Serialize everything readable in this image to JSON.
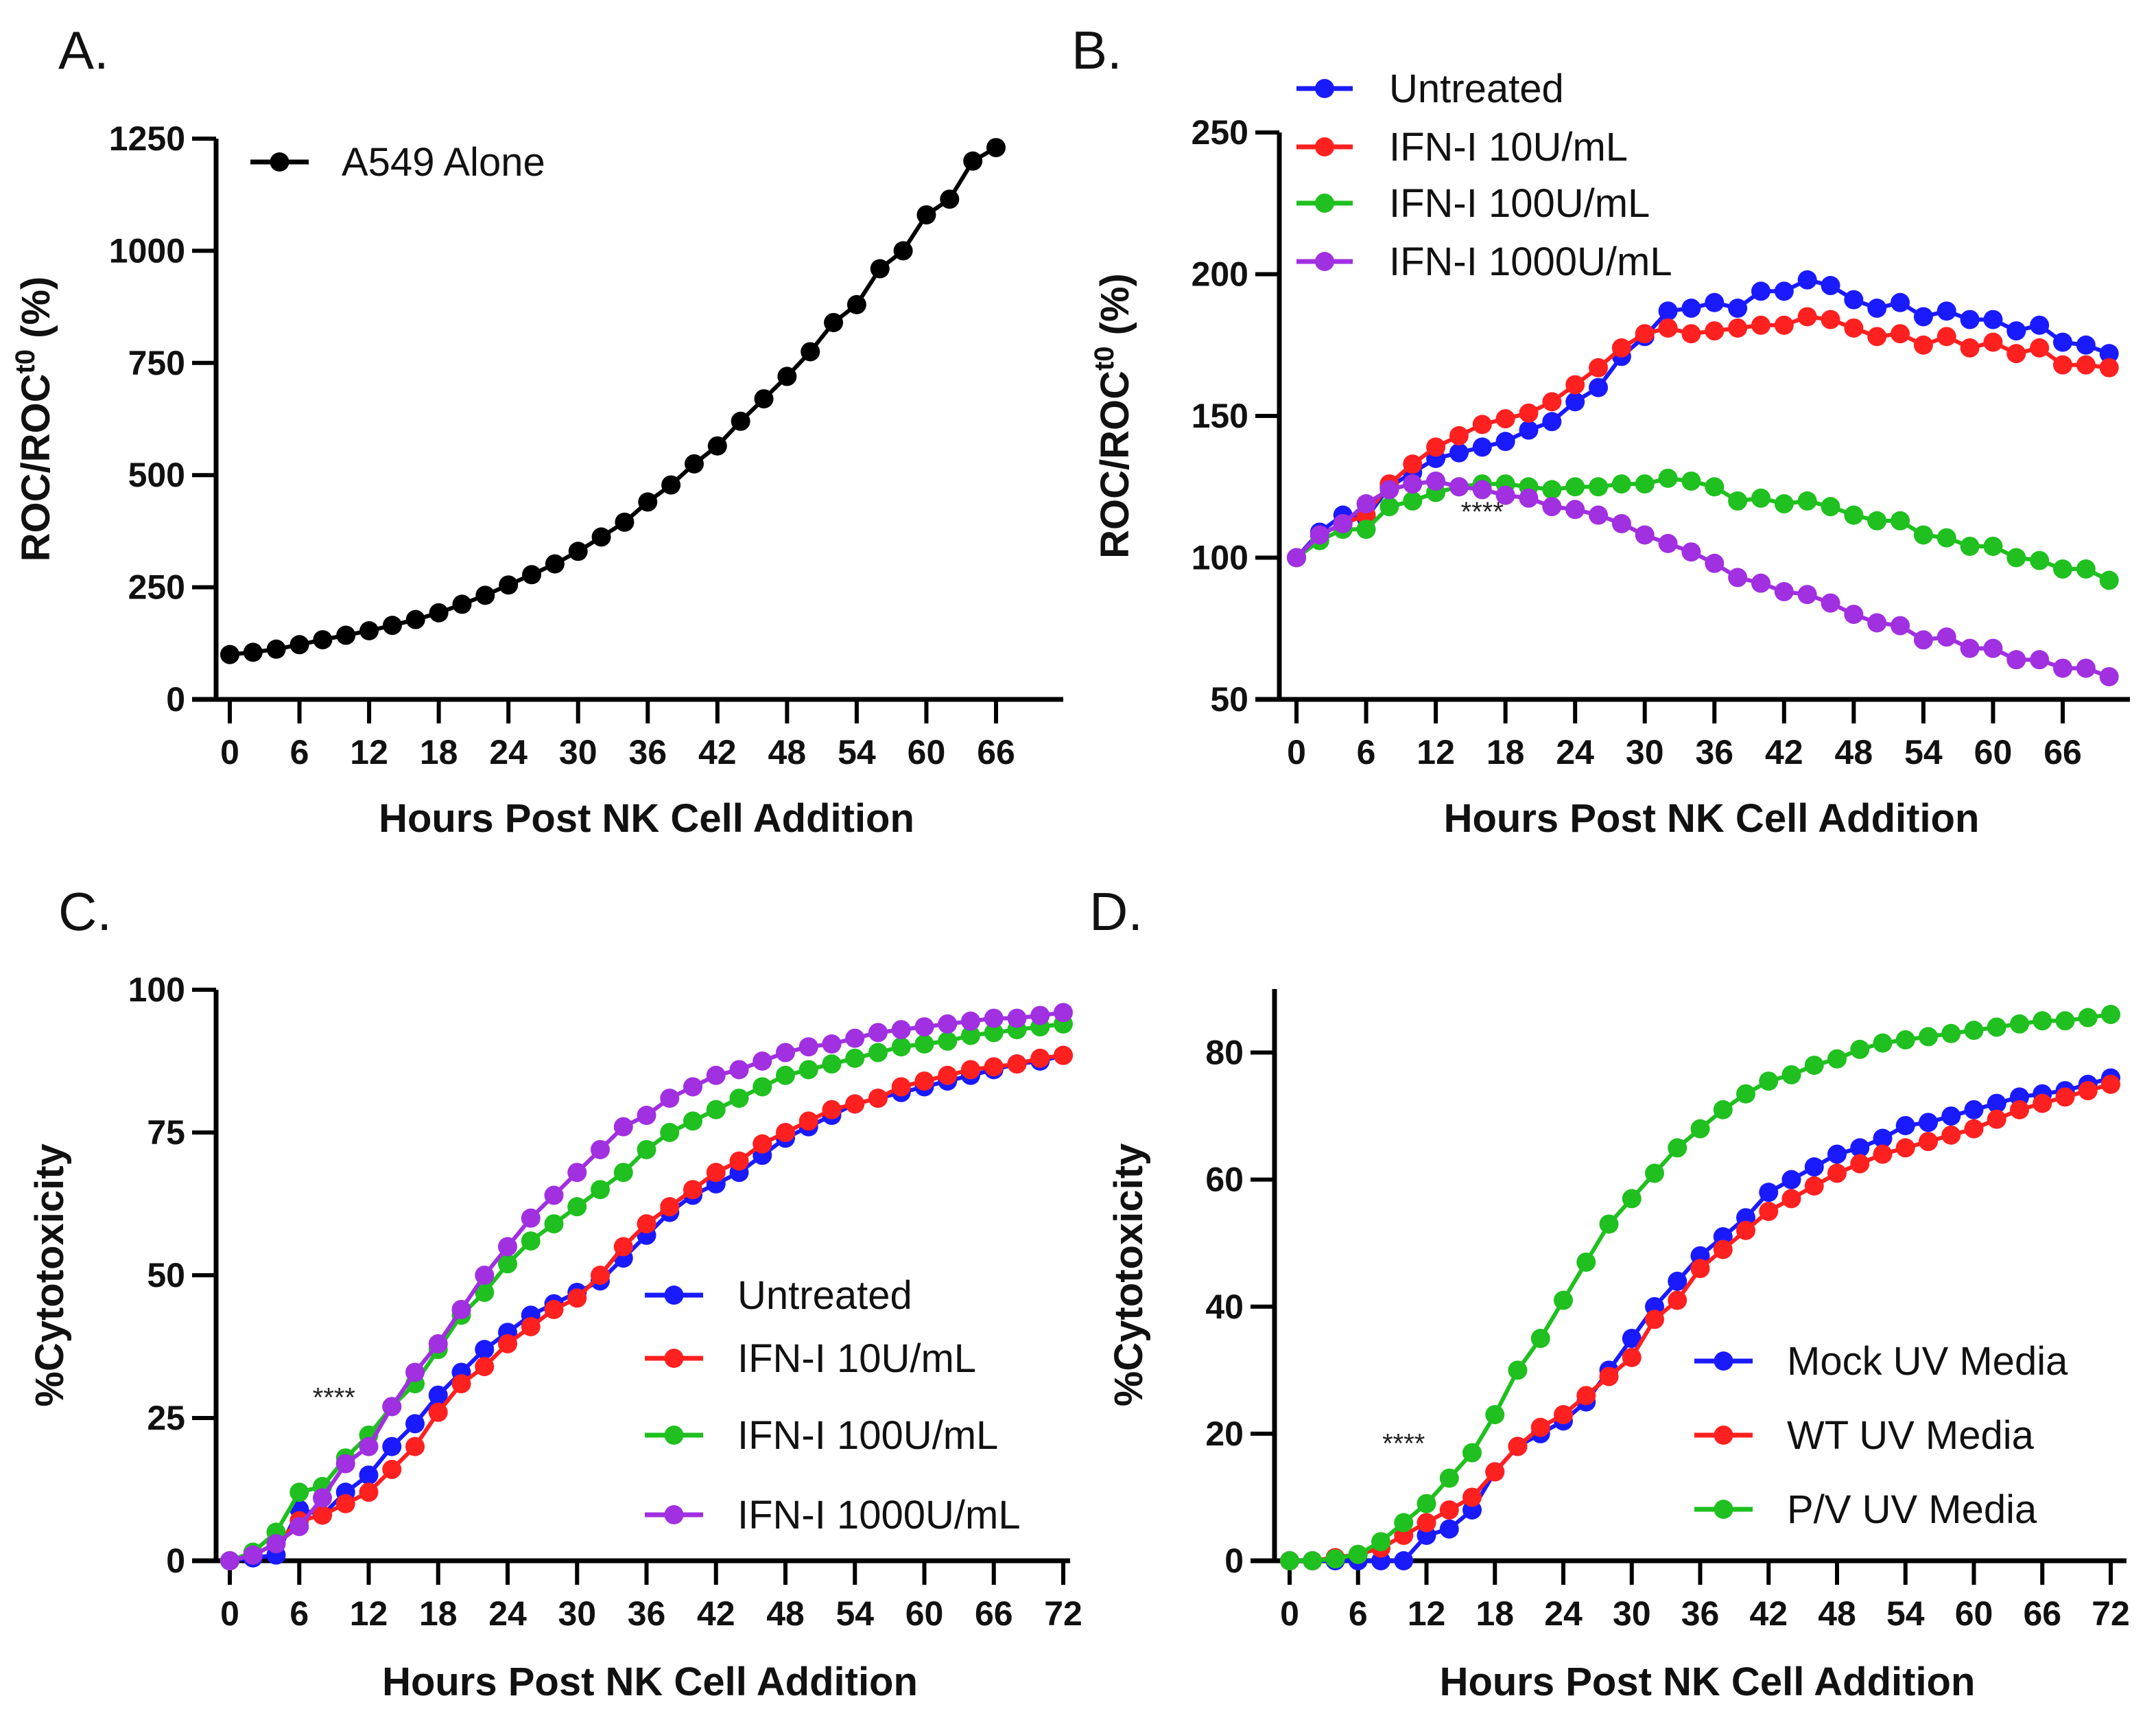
{
  "chart_data": [
    {
      "type": "line",
      "panel_label": "A.",
      "xlabel": "Hours Post NK Cell Addition",
      "ylabel": "ROC/ROC",
      "ylabel_sup": "t0",
      "ylabel_suffix": " (%)",
      "xticks": [
        0,
        6,
        12,
        18,
        24,
        30,
        36,
        42,
        48,
        54,
        60,
        66
      ],
      "yticks": [
        0,
        250,
        500,
        750,
        1000,
        1250
      ],
      "xlim": [
        -2,
        73
      ],
      "ylim": [
        0,
        1250
      ],
      "legend_position": "top-left",
      "series": [
        {
          "name": "A549 Alone",
          "color": "#000000",
          "x": [
            0,
            2,
            4,
            6,
            8,
            10,
            12,
            14,
            16,
            18,
            20,
            22,
            24,
            26,
            28,
            30,
            32,
            34,
            36,
            38,
            40,
            42,
            44,
            46,
            48,
            50,
            52,
            54,
            56,
            58,
            60,
            62,
            64,
            66
          ],
          "y": [
            100,
            105,
            112,
            122,
            133,
            143,
            153,
            165,
            178,
            193,
            212,
            232,
            255,
            278,
            302,
            330,
            362,
            395,
            440,
            478,
            525,
            565,
            620,
            670,
            720,
            775,
            840,
            880,
            960,
            1000,
            1080,
            1115,
            1200,
            1230
          ]
        }
      ],
      "annotations": []
    },
    {
      "type": "line",
      "panel_label": "B.",
      "xlabel": "Hours Post NK Cell Addition",
      "ylabel": "ROC/ROC",
      "ylabel_sup": "t0",
      "ylabel_suffix": " (%)",
      "xticks": [
        0,
        6,
        12,
        18,
        24,
        30,
        36,
        42,
        48,
        54,
        60,
        66
      ],
      "yticks": [
        50,
        100,
        150,
        200,
        250
      ],
      "xlim": [
        -2,
        72
      ],
      "ylim": [
        50,
        250
      ],
      "legend_position": "top-left",
      "series": [
        {
          "name": "Untreated",
          "color": "#1a1aff",
          "x": [
            0,
            2,
            4,
            6,
            8,
            10,
            12,
            14,
            16,
            18,
            20,
            22,
            24,
            26,
            28,
            30,
            32,
            34,
            36,
            38,
            40,
            42,
            44,
            46,
            48,
            50,
            52,
            54,
            56,
            58,
            60,
            62,
            64,
            66,
            68,
            70
          ],
          "y": [
            100,
            109,
            115,
            114,
            125,
            130,
            135,
            137,
            139,
            141,
            145,
            148,
            155,
            160,
            171,
            178,
            187,
            188,
            190,
            188,
            194,
            194,
            198,
            196,
            191,
            188,
            190,
            185,
            187,
            184,
            184,
            180,
            182,
            176,
            175,
            172
          ]
        },
        {
          "name": "IFN-I 10U/mL",
          "color": "#ff2020",
          "x": [
            0,
            2,
            4,
            6,
            8,
            10,
            12,
            14,
            16,
            18,
            20,
            22,
            24,
            26,
            28,
            30,
            32,
            34,
            36,
            38,
            40,
            42,
            44,
            46,
            48,
            50,
            52,
            54,
            56,
            58,
            60,
            62,
            64,
            66,
            68,
            70
          ],
          "y": [
            100,
            108,
            112,
            115,
            126,
            133,
            139,
            143,
            147,
            149,
            151,
            155,
            161,
            167,
            174,
            179,
            181,
            179,
            180,
            181,
            182,
            182,
            185,
            184,
            181,
            178,
            179,
            175,
            178,
            174,
            176,
            172,
            174,
            168,
            168,
            167
          ]
        },
        {
          "name": "IFN-I 100U/mL",
          "color": "#1fc01f",
          "x": [
            0,
            2,
            4,
            6,
            8,
            10,
            12,
            14,
            16,
            18,
            20,
            22,
            24,
            26,
            28,
            30,
            32,
            34,
            36,
            38,
            40,
            42,
            44,
            46,
            48,
            50,
            52,
            54,
            56,
            58,
            60,
            62,
            64,
            66,
            68,
            70
          ],
          "y": [
            100,
            106,
            110,
            110,
            118,
            120,
            123,
            125,
            126,
            126,
            125,
            124,
            125,
            125,
            126,
            126,
            128,
            127,
            125,
            120,
            121,
            119,
            120,
            118,
            115,
            113,
            113,
            108,
            107,
            104,
            104,
            100,
            99,
            96,
            96,
            92
          ]
        },
        {
          "name": "IFN-I 1000U/mL",
          "color": "#a030e0",
          "x": [
            0,
            2,
            4,
            6,
            8,
            10,
            12,
            14,
            16,
            18,
            20,
            22,
            24,
            26,
            28,
            30,
            32,
            34,
            36,
            38,
            40,
            42,
            44,
            46,
            48,
            50,
            52,
            54,
            56,
            58,
            60,
            62,
            64,
            66,
            68,
            70
          ],
          "y": [
            100,
            108,
            112,
            119,
            124,
            126,
            127,
            125,
            124,
            122,
            121,
            118,
            117,
            115,
            112,
            108,
            105,
            102,
            98,
            93,
            91,
            88,
            87,
            84,
            80,
            77,
            76,
            71,
            72,
            68,
            68,
            64,
            64,
            61,
            61,
            58
          ]
        }
      ],
      "annotations": [
        {
          "text": "****",
          "x": 16,
          "y": 113
        }
      ]
    },
    {
      "type": "line",
      "panel_label": "C.",
      "xlabel": "Hours Post NK Cell Addition",
      "ylabel": "%Cytotoxicity",
      "ylabel_sup": "",
      "ylabel_suffix": "",
      "xticks": [
        0,
        6,
        12,
        18,
        24,
        30,
        36,
        42,
        48,
        54,
        60,
        66,
        72
      ],
      "yticks": [
        0,
        25,
        50,
        75,
        100
      ],
      "xlim": [
        -2,
        73
      ],
      "ylim": [
        0,
        100
      ],
      "legend_position": "bottom-right",
      "series": [
        {
          "name": "Untreated",
          "color": "#1a1aff",
          "x": [
            0,
            2,
            4,
            6,
            8,
            10,
            12,
            14,
            16,
            18,
            20,
            22,
            24,
            26,
            28,
            30,
            32,
            34,
            36,
            38,
            40,
            42,
            44,
            46,
            48,
            50,
            52,
            54,
            56,
            58,
            60,
            62,
            64,
            66,
            68,
            70,
            72
          ],
          "y": [
            0,
            0.5,
            1,
            9,
            8,
            12,
            15,
            20,
            24,
            29,
            33,
            37,
            40,
            43,
            45,
            47,
            49,
            53,
            57,
            61,
            64,
            66,
            68,
            71,
            74,
            76,
            78,
            80,
            81,
            82,
            83,
            84,
            85,
            86,
            87,
            87.5,
            88.5
          ]
        },
        {
          "name": "IFN-I 10U/mL",
          "color": "#ff2020",
          "x": [
            0,
            2,
            4,
            6,
            8,
            10,
            12,
            14,
            16,
            18,
            20,
            22,
            24,
            26,
            28,
            30,
            32,
            34,
            36,
            38,
            40,
            42,
            44,
            46,
            48,
            50,
            52,
            54,
            56,
            58,
            60,
            62,
            64,
            66,
            68,
            70,
            72
          ],
          "y": [
            0,
            1,
            3,
            7,
            8,
            10,
            12,
            16,
            20,
            26,
            31,
            34,
            38,
            41,
            44,
            46,
            50,
            55,
            59,
            62,
            65,
            68,
            70,
            73,
            75,
            77,
            79,
            80,
            81,
            83,
            84,
            85,
            86,
            86.5,
            87,
            88,
            88.5
          ]
        },
        {
          "name": "IFN-I 100U/mL",
          "color": "#1fc01f",
          "x": [
            0,
            2,
            4,
            6,
            8,
            10,
            12,
            14,
            16,
            18,
            20,
            22,
            24,
            26,
            28,
            30,
            32,
            34,
            36,
            38,
            40,
            42,
            44,
            46,
            48,
            50,
            52,
            54,
            56,
            58,
            60,
            62,
            64,
            66,
            68,
            70,
            72
          ],
          "y": [
            0,
            1.5,
            5,
            12,
            13,
            18,
            22,
            27,
            31,
            37,
            43,
            47,
            52,
            56,
            59,
            62,
            65,
            68,
            72,
            75,
            77,
            79,
            81,
            83,
            85,
            86,
            87,
            88,
            89,
            90,
            90.5,
            91,
            92,
            92.5,
            93,
            93.5,
            94
          ]
        },
        {
          "name": "IFN-I 1000U/mL",
          "color": "#a030e0",
          "x": [
            0,
            2,
            4,
            6,
            8,
            10,
            12,
            14,
            16,
            18,
            20,
            22,
            24,
            26,
            28,
            30,
            32,
            34,
            36,
            38,
            40,
            42,
            44,
            46,
            48,
            50,
            52,
            54,
            56,
            58,
            60,
            62,
            64,
            66,
            68,
            70,
            72
          ],
          "y": [
            0,
            1,
            3,
            6,
            11,
            17,
            20,
            27,
            33,
            38,
            44,
            50,
            55,
            60,
            64,
            68,
            72,
            76,
            78,
            81,
            83,
            85,
            86,
            87.5,
            89,
            90,
            90.5,
            91.5,
            92.5,
            93,
            93.5,
            94,
            94.5,
            95,
            95,
            95.5,
            96
          ]
        }
      ],
      "annotations": [
        {
          "text": "****",
          "x": 9,
          "y": 27
        }
      ]
    },
    {
      "type": "line",
      "panel_label": "D.",
      "xlabel": "Hours Post NK Cell Addition",
      "ylabel": "%Cytotoxicity",
      "ylabel_sup": "",
      "ylabel_suffix": "",
      "xticks": [
        0,
        6,
        12,
        18,
        24,
        30,
        36,
        42,
        48,
        54,
        60,
        66,
        72
      ],
      "yticks": [
        0,
        20,
        40,
        60,
        80
      ],
      "xlim": [
        -2,
        73
      ],
      "ylim": [
        0,
        90
      ],
      "legend_position": "bottom-right",
      "series": [
        {
          "name": "Mock UV Media",
          "color": "#1a1aff",
          "x": [
            0,
            2,
            4,
            6,
            8,
            10,
            12,
            14,
            16,
            18,
            20,
            22,
            24,
            26,
            28,
            30,
            32,
            34,
            36,
            38,
            40,
            42,
            44,
            46,
            48,
            50,
            52,
            54,
            56,
            58,
            60,
            62,
            64,
            66,
            68,
            70,
            72
          ],
          "y": [
            0,
            0,
            0,
            0,
            0,
            0,
            4,
            5,
            8,
            14,
            18,
            20,
            22,
            25,
            30,
            35,
            40,
            44,
            48,
            51,
            54,
            58,
            60,
            62,
            64,
            65,
            66.5,
            68.5,
            69,
            70,
            71,
            72,
            73,
            73.5,
            74,
            75,
            76
          ]
        },
        {
          "name": "WT UV Media",
          "color": "#ff2020",
          "x": [
            0,
            2,
            4,
            6,
            8,
            10,
            12,
            14,
            16,
            18,
            20,
            22,
            24,
            26,
            28,
            30,
            32,
            34,
            36,
            38,
            40,
            42,
            44,
            46,
            48,
            50,
            52,
            54,
            56,
            58,
            60,
            62,
            64,
            66,
            68,
            70,
            72
          ],
          "y": [
            0,
            0,
            0.5,
            1,
            2,
            4,
            6,
            8,
            10,
            14,
            18,
            21,
            23,
            26,
            29,
            32,
            38,
            41,
            46,
            49,
            52,
            55,
            57,
            59,
            61,
            62.5,
            64,
            65,
            66,
            67,
            68,
            69.5,
            71,
            72,
            73,
            74,
            75
          ]
        },
        {
          "name": "P/V UV Media",
          "color": "#1fc01f",
          "x": [
            0,
            2,
            4,
            6,
            8,
            10,
            12,
            14,
            16,
            18,
            20,
            22,
            24,
            26,
            28,
            30,
            32,
            34,
            36,
            38,
            40,
            42,
            44,
            46,
            48,
            50,
            52,
            54,
            56,
            58,
            60,
            62,
            64,
            66,
            68,
            70,
            72
          ],
          "y": [
            0,
            0,
            0.3,
            1,
            3,
            6,
            9,
            13,
            17,
            23,
            30,
            35,
            41,
            47,
            53,
            57,
            61,
            65,
            68,
            71,
            73.5,
            75.5,
            76.5,
            78,
            79,
            80.5,
            81.5,
            82,
            82.5,
            83,
            83.5,
            84,
            84.5,
            85,
            85,
            85.5,
            86
          ]
        }
      ],
      "annotations": [
        {
          "text": "****",
          "x": 10,
          "y": 17
        }
      ]
    }
  ]
}
